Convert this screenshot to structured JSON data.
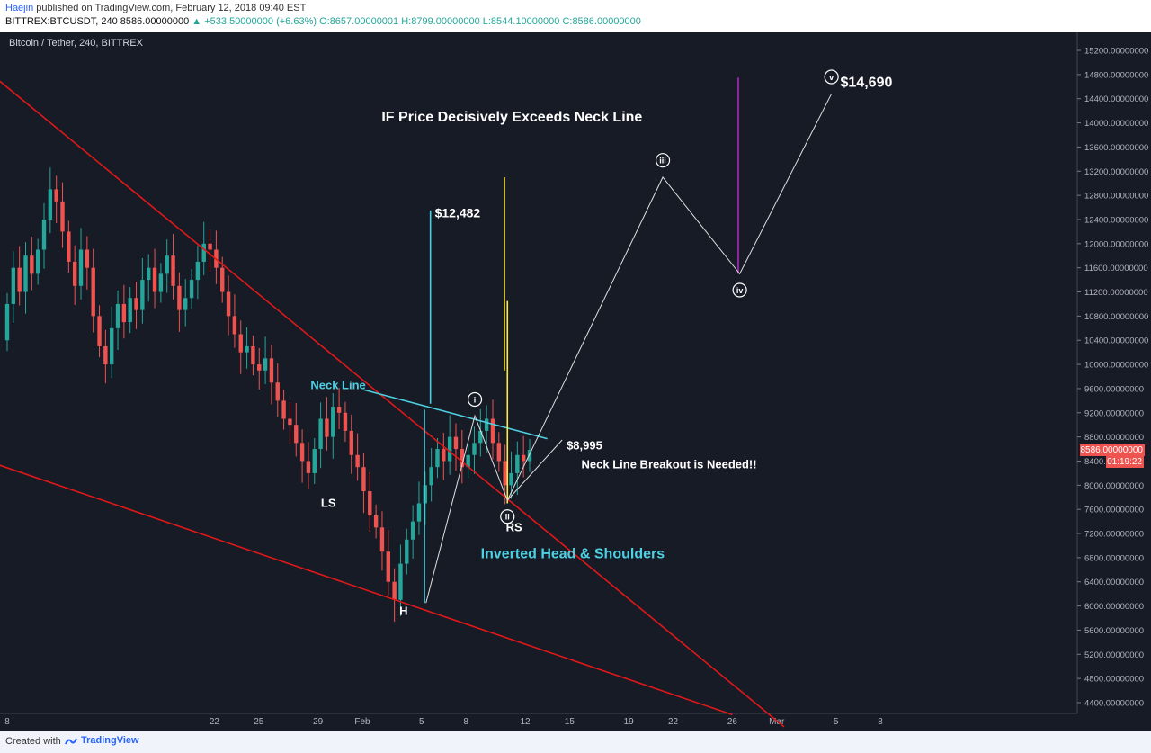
{
  "header": {
    "author": "Haejin",
    "published": "published on TradingView.com, February 12, 2018 09:40 EST",
    "symbol": "BITTREX:BTCUSDT, 240",
    "last": "8586.00000000",
    "change": "▲ +533.50000000 (+6.63%)",
    "ohlc": "O:8657.00000001 H:8799.00000000 L:8544.10000000 C:8586.00000000"
  },
  "chart_title": "Bitcoin / Tether, 240, BITTREX",
  "current_price_tag": "8586.00000000",
  "timer_tag": "01:19:22",
  "footer": {
    "created_with": "Created with",
    "brand": "TradingView",
    "logo_icon": "tradingview-logo-icon"
  },
  "colors": {
    "bg": "#171b26",
    "up": "#26a69a",
    "down": "#ef5350",
    "red_line": "#e01818",
    "cyan": "#4dd0e1",
    "yellow": "#ffeb3b",
    "purple": "#9c27b0",
    "white": "#ffffff"
  },
  "annotations": {
    "headline": "IF Price Decisively Exceeds Neck Line",
    "target_1": "$12,482",
    "target_2": "$14,690",
    "neck_line": "Neck Line",
    "neck_price": "$8,995",
    "breakout": "Neck Line Breakout is Needed!!",
    "pattern": "Inverted Head & Shoulders",
    "ls": "LS",
    "h": "H",
    "rs": "RS",
    "waves": [
      "i",
      "ii",
      "iii",
      "iv",
      "v"
    ]
  },
  "chart_data": {
    "type": "candlestick",
    "title": "Bitcoin / Tether, 240, BITTREX",
    "ylim": [
      4200,
      15300
    ],
    "y_ticks": [
      "15200.00000000",
      "14800.00000000",
      "14400.00000000",
      "14000.00000000",
      "13600.00000000",
      "13200.00000000",
      "12800.00000000",
      "12400.00000000",
      "12000.00000000",
      "11600.00000000",
      "11200.00000000",
      "10800.00000000",
      "10400.00000000",
      "10000.00000000",
      "9600.00000000",
      "9200.00000000",
      "8800.00000000",
      "8400.00000000",
      "8000.00000000",
      "7600.00000000",
      "7200.00000000",
      "6800.00000000",
      "6400.00000000",
      "6000.00000000",
      "5600.00000000",
      "5200.00000000",
      "4800.00000000",
      "4400.00000000"
    ],
    "x_ticks": [
      {
        "label": "8",
        "day": 0
      },
      {
        "label": "22",
        "day": 14
      },
      {
        "label": "25",
        "day": 17
      },
      {
        "label": "29",
        "day": 21
      },
      {
        "label": "Feb",
        "day": 24
      },
      {
        "label": "5",
        "day": 28
      },
      {
        "label": "8",
        "day": 31
      },
      {
        "label": "12",
        "day": 35
      },
      {
        "label": "15",
        "day": 38
      },
      {
        "label": "19",
        "day": 42
      },
      {
        "label": "22",
        "day": 45
      },
      {
        "label": "26",
        "day": 49
      },
      {
        "label": "Mar",
        "day": 52
      },
      {
        "label": "5",
        "day": 56
      },
      {
        "label": "8",
        "day": 59
      }
    ],
    "closes": [
      11000,
      11600,
      11200,
      11800,
      11500,
      11900,
      12400,
      12900,
      12700,
      12200,
      11700,
      11300,
      11900,
      11600,
      10800,
      10300,
      10000,
      10600,
      11000,
      10700,
      11100,
      10900,
      11400,
      11600,
      11200,
      11500,
      11800,
      11300,
      10900,
      11100,
      11400,
      11700,
      12000,
      11900,
      11600,
      11200,
      10800,
      10500,
      10200,
      10300,
      10000,
      9900,
      10100,
      9700,
      9400,
      9100,
      9000,
      8700,
      8400,
      8200,
      8600,
      9100,
      8800,
      9300,
      9200,
      8900,
      8500,
      8300,
      7900,
      7500,
      7300,
      6900,
      6400,
      6100,
      6700,
      7100,
      7400,
      7700,
      8000,
      8300,
      8600,
      8400,
      8800,
      8600,
      8300,
      8500,
      8700,
      8900,
      9100,
      8700,
      8400,
      8000,
      8200,
      8500,
      8400,
      8586
    ],
    "price_lines": {
      "neck_line": [
        {
          "day": 24.1,
          "price": 9580
        },
        {
          "day": 36.5,
          "price": 8770
        }
      ],
      "upper_trend": [
        {
          "day": -0.5,
          "price": 14690
        },
        {
          "day": 52.5,
          "price": 4000
        }
      ],
      "lower_trend": [
        {
          "day": -0.5,
          "price": 8330
        },
        {
          "day": 49,
          "price": 4200
        }
      ],
      "projection": [
        {
          "day": 28.3,
          "price": 6050
        },
        {
          "day": 31.6,
          "price": 9150
        },
        {
          "day": 33.8,
          "price": 7750
        },
        {
          "day": 44.3,
          "price": 13100
        },
        {
          "day": 49.5,
          "price": 11500
        },
        {
          "day": 55.7,
          "price": 14480
        }
      ],
      "cyan_target": {
        "day": 28.6,
        "from": 9350,
        "to": 12550
      },
      "cyan_measure": {
        "day": 28.2,
        "from": 6050,
        "to": 9250
      },
      "yellow_1": {
        "day": 33.6,
        "from": 9900,
        "to": 13100
      },
      "yellow_2": {
        "day": 33.8,
        "from": 7700,
        "to": 11050
      },
      "purple": {
        "day": 49.4,
        "from": 11500,
        "to": 14750
      }
    }
  }
}
